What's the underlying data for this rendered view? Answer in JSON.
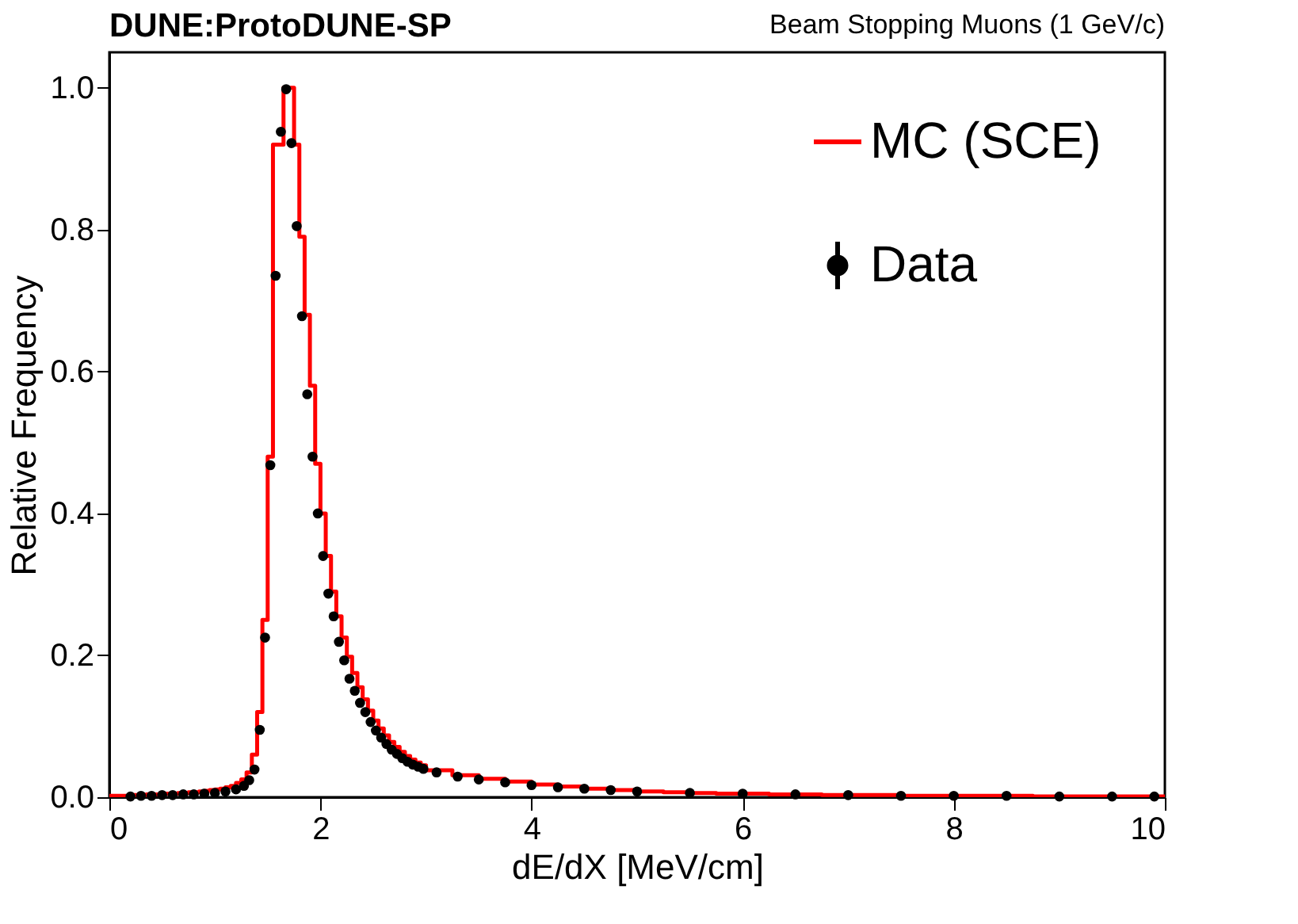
{
  "chart_data": {
    "type": "histogram",
    "title": "DUNE:ProtoDUNE-SP",
    "subtitle": "Beam Stopping Muons (1 GeV/c)",
    "xlabel": "dE/dX [MeV/cm]",
    "ylabel": "Relative Frequency",
    "bins": [
      0,
      0.05,
      0.1,
      0.15,
      0.2,
      0.25,
      0.3,
      0.35,
      0.4,
      0.45,
      0.5,
      0.55,
      0.6,
      0.65,
      0.7,
      0.75,
      0.8,
      0.85,
      0.9,
      0.95,
      1.0,
      1.05,
      1.1,
      1.15,
      1.2,
      1.25,
      1.3,
      1.35,
      1.4,
      1.45,
      1.5,
      1.55,
      1.6,
      1.65,
      1.7,
      1.75,
      1.8,
      1.85,
      1.9,
      1.95,
      2.0,
      2.05,
      2.1,
      2.15,
      2.2,
      2.25,
      2.3,
      2.35,
      2.4,
      2.45,
      2.5,
      2.55,
      2.6,
      2.65,
      2.7,
      2.75,
      2.8,
      2.85,
      2.9,
      2.95,
      3.0,
      3.25,
      3.5,
      3.75,
      4.0,
      4.25,
      4.5,
      4.75,
      5.0,
      5.25,
      5.5,
      5.75,
      6.0,
      6.25,
      6.5,
      6.75,
      7.0,
      7.25,
      7.5,
      7.75,
      8.0,
      8.25,
      8.5,
      8.75,
      9.0,
      9.25,
      9.5,
      9.75,
      10.0
    ],
    "series": [
      {
        "name": "MC (SCE)",
        "color": "#ff0000",
        "values": [
          0.002,
          0.002,
          0.002,
          0.002,
          0.003,
          0.003,
          0.003,
          0.004,
          0.004,
          0.004,
          0.005,
          0.005,
          0.005,
          0.006,
          0.006,
          0.007,
          0.007,
          0.008,
          0.009,
          0.01,
          0.011,
          0.012,
          0.014,
          0.016,
          0.02,
          0.025,
          0.035,
          0.06,
          0.12,
          0.25,
          0.48,
          0.92,
          0.92,
          1.0,
          1.0,
          0.92,
          0.79,
          0.68,
          0.58,
          0.47,
          0.4,
          0.34,
          0.29,
          0.255,
          0.225,
          0.198,
          0.175,
          0.155,
          0.138,
          0.122,
          0.108,
          0.097,
          0.087,
          0.078,
          0.071,
          0.064,
          0.058,
          0.053,
          0.049,
          0.045,
          0.038,
          0.031,
          0.026,
          0.022,
          0.018,
          0.015,
          0.012,
          0.01,
          0.008,
          0.007,
          0.006,
          0.005,
          0.005,
          0.004,
          0.004,
          0.003,
          0.003,
          0.003,
          0.002,
          0.002,
          0.002,
          0.002,
          0.002,
          0.001,
          0.001,
          0.001,
          0.001,
          0.001
        ]
      },
      {
        "name": "Data",
        "type": "scatter",
        "color": "#000000",
        "x": [
          0.2,
          0.3,
          0.4,
          0.5,
          0.6,
          0.7,
          0.8,
          0.9,
          1.0,
          1.1,
          1.2,
          1.275,
          1.325,
          1.375,
          1.425,
          1.475,
          1.525,
          1.575,
          1.625,
          1.675,
          1.725,
          1.775,
          1.825,
          1.875,
          1.925,
          1.975,
          2.025,
          2.075,
          2.125,
          2.175,
          2.225,
          2.275,
          2.325,
          2.375,
          2.425,
          2.475,
          2.525,
          2.575,
          2.625,
          2.675,
          2.725,
          2.775,
          2.825,
          2.875,
          2.925,
          2.975,
          3.1,
          3.3,
          3.5,
          3.75,
          4.0,
          4.25,
          4.5,
          4.75,
          5.0,
          5.5,
          6.0,
          6.5,
          7.0,
          7.5,
          8.0,
          8.5,
          9.0,
          9.5,
          9.9
        ],
        "values": [
          0.001,
          0.002,
          0.002,
          0.003,
          0.003,
          0.004,
          0.004,
          0.005,
          0.006,
          0.008,
          0.011,
          0.016,
          0.024,
          0.039,
          0.095,
          0.225,
          0.468,
          0.735,
          0.938,
          0.998,
          0.922,
          0.805,
          0.678,
          0.568,
          0.48,
          0.4,
          0.34,
          0.287,
          0.255,
          0.219,
          0.193,
          0.167,
          0.15,
          0.133,
          0.12,
          0.106,
          0.094,
          0.084,
          0.075,
          0.067,
          0.061,
          0.055,
          0.05,
          0.046,
          0.043,
          0.04,
          0.035,
          0.029,
          0.025,
          0.021,
          0.017,
          0.014,
          0.012,
          0.01,
          0.008,
          0.006,
          0.005,
          0.004,
          0.003,
          0.002,
          0.002,
          0.002,
          0.001,
          0.001,
          0.001
        ]
      }
    ],
    "xlim": [
      0,
      10
    ],
    "ylim": [
      0,
      1.05
    ],
    "xticks": [
      0,
      2,
      4,
      6,
      8,
      10
    ],
    "yticks": [
      {
        "value": 0,
        "label": "0.0"
      },
      {
        "value": 0.2,
        "label": "0.2"
      },
      {
        "value": 0.4,
        "label": "0.4"
      },
      {
        "value": 0.6,
        "label": "0.6"
      },
      {
        "value": 0.8,
        "label": "0.8"
      },
      {
        "value": 1.0,
        "label": "1.0"
      }
    ],
    "legend": "top right",
    "marker": "circle"
  }
}
